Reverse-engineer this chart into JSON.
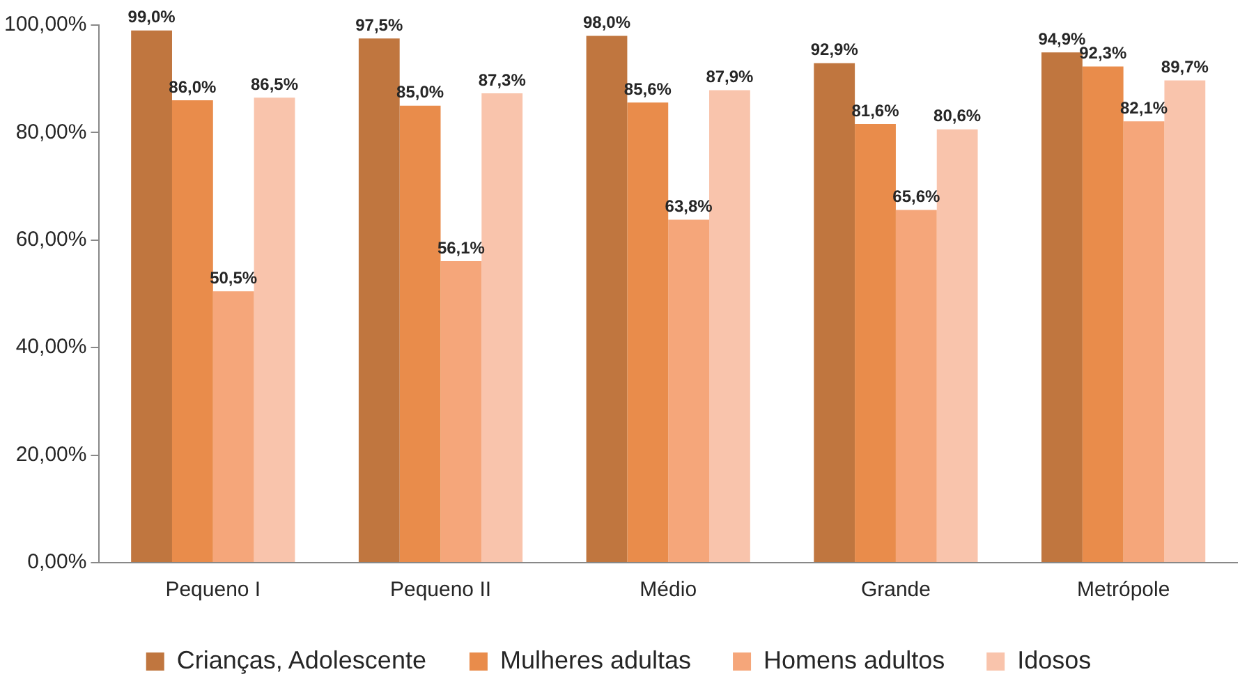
{
  "chart_data": {
    "type": "bar",
    "categories": [
      "Pequeno I",
      "Pequeno II",
      "Médio",
      "Grande",
      "Metrópole"
    ],
    "series": [
      {
        "name": "Crianças, Adolescente",
        "color": "#c0763f",
        "values": [
          99.0,
          97.5,
          98.0,
          92.9,
          94.9
        ],
        "value_labels": [
          "99,0%",
          "97,5%",
          "98,0%",
          "92,9%",
          "94,9%"
        ]
      },
      {
        "name": "Mulheres adultas",
        "color": "#e98c4b",
        "values": [
          86.0,
          85.0,
          85.6,
          81.6,
          92.3
        ],
        "value_labels": [
          "86,0%",
          "85,0%",
          "85,6%",
          "81,6%",
          "92,3%"
        ]
      },
      {
        "name": "Homens adultos",
        "color": "#f5a67a",
        "values": [
          50.5,
          56.1,
          63.8,
          65.6,
          82.1
        ],
        "value_labels": [
          "50,5%",
          "56,1%",
          "63,8%",
          "65,6%",
          "82,1%"
        ]
      },
      {
        "name": "Idosos",
        "color": "#f9c4ac",
        "values": [
          86.5,
          87.3,
          87.9,
          80.6,
          89.7
        ],
        "value_labels": [
          "86,5%",
          "87,3%",
          "87,9%",
          "80,6%",
          "89,7%"
        ]
      }
    ],
    "ylim": [
      0,
      100
    ],
    "yticks": [
      {
        "value": 0,
        "label": "0,00%"
      },
      {
        "value": 20,
        "label": "20,00%"
      },
      {
        "value": 40,
        "label": "40,00%"
      },
      {
        "value": 60,
        "label": "60,00%"
      },
      {
        "value": 80,
        "label": "80,00%"
      },
      {
        "value": 100,
        "label": "100,00%"
      }
    ],
    "grid": false,
    "legend": "bottom"
  }
}
